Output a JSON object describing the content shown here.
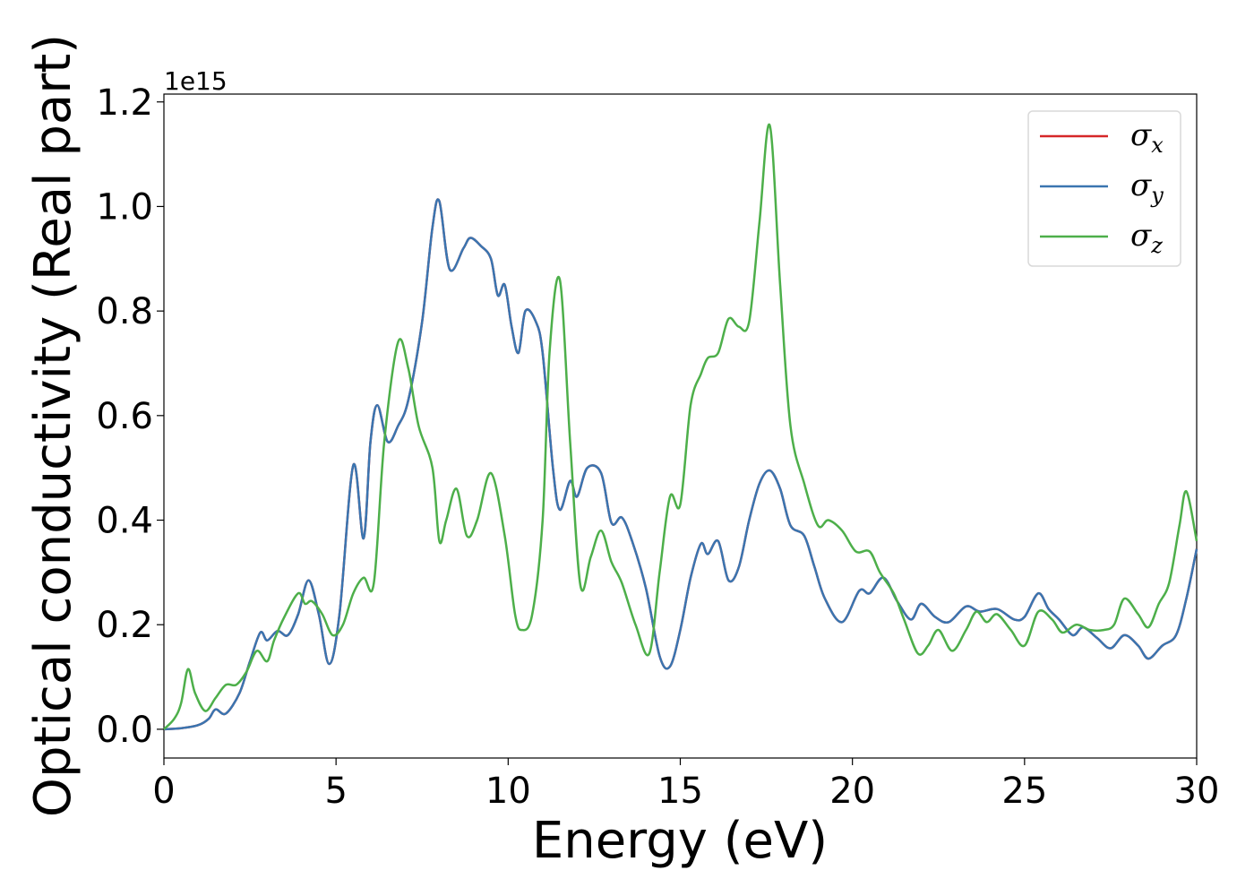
{
  "chart_data": {
    "type": "line",
    "xlabel": "Energy (eV)",
    "ylabel": "Optical conductivity (Real part)",
    "y_offset_text": "1e15",
    "xlim": [
      0,
      30
    ],
    "ylim": [
      -0.055,
      1.215
    ],
    "y_scale_note": "values in units of 1e15",
    "grid": false,
    "legend_position": "top-right",
    "x_ticks": [
      "0",
      "5",
      "10",
      "15",
      "20",
      "25",
      "30"
    ],
    "y_ticks": [
      "0.0",
      "0.2",
      "0.4",
      "0.6",
      "0.8",
      "1.0",
      "1.2"
    ],
    "colors": {
      "sigma_x": "#d62728",
      "sigma_y": "#3a75b0",
      "sigma_z": "#4daf4a"
    },
    "legend": [
      {
        "symbol": "σ",
        "sub": "x",
        "color": "#d62728"
      },
      {
        "symbol": "σ",
        "sub": "y",
        "color": "#3a75b0"
      },
      {
        "symbol": "σ",
        "sub": "z",
        "color": "#4daf4a"
      }
    ],
    "series": [
      {
        "key": "sigma_xy",
        "note": "sigma_x and sigma_y overlap; drawn in sigma_y color over sigma_x",
        "x": [
          0,
          0.5,
          1.0,
          1.3,
          1.5,
          1.8,
          2.2,
          2.5,
          2.8,
          3.0,
          3.3,
          3.6,
          3.9,
          4.2,
          4.5,
          4.8,
          5.1,
          5.5,
          5.8,
          6.0,
          6.2,
          6.5,
          6.8,
          7.1,
          7.5,
          7.8,
          8.0,
          8.3,
          8.7,
          8.9,
          9.2,
          9.5,
          9.7,
          9.9,
          10.1,
          10.3,
          10.5,
          10.8,
          11.0,
          11.3,
          11.5,
          11.8,
          12.0,
          12.3,
          12.7,
          13.0,
          13.3,
          13.6,
          14.0,
          14.4,
          14.7,
          15.0,
          15.3,
          15.6,
          15.8,
          16.1,
          16.4,
          16.7,
          17.0,
          17.3,
          17.6,
          17.9,
          18.2,
          18.6,
          18.9,
          19.2,
          19.7,
          20.2,
          20.5,
          20.9,
          21.3,
          21.7,
          22.0,
          22.4,
          22.8,
          23.3,
          23.7,
          24.2,
          24.7,
          25.0,
          25.4,
          25.7,
          26.0,
          26.4,
          26.7,
          27.1,
          27.5,
          27.9,
          28.3,
          28.6,
          29.0,
          29.4,
          29.7,
          30.0
        ],
        "y": [
          0.0,
          0.002,
          0.008,
          0.02,
          0.038,
          0.03,
          0.07,
          0.13,
          0.185,
          0.17,
          0.188,
          0.18,
          0.22,
          0.285,
          0.22,
          0.125,
          0.22,
          0.505,
          0.365,
          0.55,
          0.62,
          0.55,
          0.58,
          0.63,
          0.78,
          0.96,
          1.01,
          0.88,
          0.92,
          0.94,
          0.925,
          0.9,
          0.83,
          0.85,
          0.77,
          0.72,
          0.8,
          0.78,
          0.72,
          0.5,
          0.42,
          0.475,
          0.445,
          0.5,
          0.49,
          0.395,
          0.405,
          0.36,
          0.27,
          0.14,
          0.12,
          0.19,
          0.29,
          0.355,
          0.335,
          0.36,
          0.285,
          0.31,
          0.4,
          0.47,
          0.495,
          0.46,
          0.39,
          0.37,
          0.31,
          0.25,
          0.205,
          0.265,
          0.26,
          0.29,
          0.245,
          0.21,
          0.24,
          0.215,
          0.205,
          0.235,
          0.225,
          0.23,
          0.21,
          0.215,
          0.26,
          0.23,
          0.21,
          0.18,
          0.195,
          0.175,
          0.155,
          0.18,
          0.16,
          0.135,
          0.16,
          0.18,
          0.25,
          0.345
        ]
      },
      {
        "key": "sigma_z",
        "x": [
          0,
          0.3,
          0.5,
          0.7,
          0.9,
          1.2,
          1.5,
          1.8,
          2.1,
          2.4,
          2.7,
          3.0,
          3.2,
          3.5,
          3.9,
          4.1,
          4.3,
          4.6,
          4.9,
          5.2,
          5.5,
          5.8,
          6.1,
          6.4,
          6.8,
          7.1,
          7.4,
          7.8,
          8.0,
          8.2,
          8.5,
          8.8,
          9.1,
          9.5,
          9.9,
          10.2,
          10.4,
          10.7,
          11.0,
          11.2,
          11.5,
          11.8,
          12.1,
          12.4,
          12.7,
          13.0,
          13.3,
          13.7,
          14.1,
          14.4,
          14.7,
          15.0,
          15.3,
          15.6,
          15.8,
          16.1,
          16.4,
          16.7,
          17.0,
          17.3,
          17.6,
          17.9,
          18.2,
          18.6,
          19.0,
          19.3,
          19.7,
          20.1,
          20.5,
          20.8,
          21.2,
          21.5,
          21.9,
          22.2,
          22.5,
          22.9,
          23.3,
          23.6,
          23.9,
          24.2,
          24.6,
          25.0,
          25.4,
          25.8,
          26.1,
          26.5,
          26.9,
          27.3,
          27.6,
          27.9,
          28.3,
          28.6,
          28.9,
          29.2,
          29.5,
          29.7,
          30.0
        ],
        "y": [
          0.0,
          0.02,
          0.05,
          0.115,
          0.07,
          0.035,
          0.06,
          0.085,
          0.085,
          0.11,
          0.15,
          0.13,
          0.17,
          0.215,
          0.26,
          0.24,
          0.245,
          0.22,
          0.18,
          0.2,
          0.26,
          0.29,
          0.28,
          0.55,
          0.74,
          0.69,
          0.58,
          0.5,
          0.36,
          0.4,
          0.46,
          0.37,
          0.4,
          0.49,
          0.37,
          0.22,
          0.19,
          0.22,
          0.4,
          0.72,
          0.86,
          0.55,
          0.275,
          0.33,
          0.38,
          0.32,
          0.28,
          0.2,
          0.145,
          0.3,
          0.445,
          0.43,
          0.62,
          0.68,
          0.71,
          0.72,
          0.785,
          0.77,
          0.78,
          0.97,
          1.155,
          0.85,
          0.58,
          0.47,
          0.39,
          0.4,
          0.38,
          0.34,
          0.34,
          0.3,
          0.26,
          0.21,
          0.145,
          0.16,
          0.19,
          0.15,
          0.19,
          0.225,
          0.205,
          0.22,
          0.19,
          0.16,
          0.225,
          0.21,
          0.185,
          0.2,
          0.19,
          0.19,
          0.2,
          0.25,
          0.22,
          0.195,
          0.24,
          0.28,
          0.39,
          0.455,
          0.36
        ]
      }
    ]
  }
}
